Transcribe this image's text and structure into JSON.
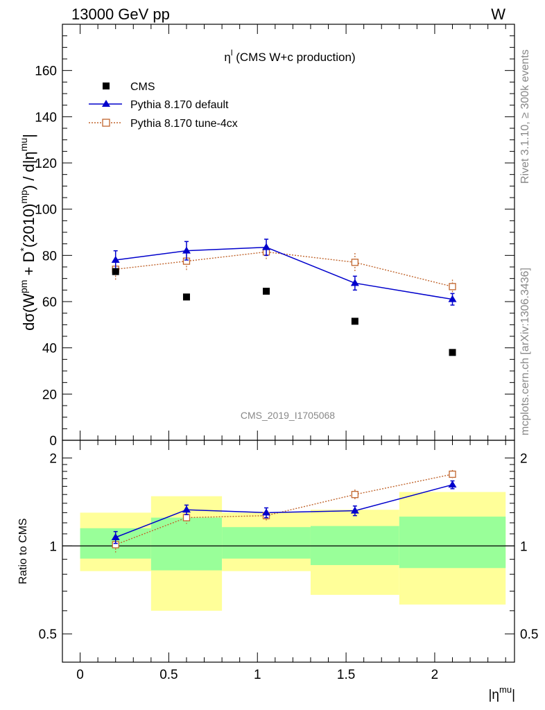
{
  "header": {
    "left": "13000 GeV pp",
    "right": "W"
  },
  "side": {
    "rivet": "Rivet 3.1.10, ≥ 300k events",
    "mcplots": "mcplots.cern.ch [arXiv:1306.3436]"
  },
  "colors": {
    "cms": "#000000",
    "default": "#0000cc",
    "tune": "#c0642c",
    "band_green": "#99ff99",
    "band_yellow": "#ffff99"
  },
  "chart_data": [
    {
      "type": "scatter",
      "title": "",
      "subtitle": {
        "main": "η",
        "sup": "l",
        "rest": " (CMS W+c production)"
      },
      "ylabel": {
        "parts": [
          "dσ(W",
          "pm",
          " + D",
          "*",
          "(2010)",
          "mp",
          ") / d|η",
          "mu",
          "|"
        ]
      },
      "xlim": [
        -0.1,
        2.45
      ],
      "ylim": [
        0,
        180
      ],
      "yticks": [
        0,
        20,
        40,
        60,
        80,
        100,
        120,
        140,
        160
      ],
      "ytick_labels": [
        "0",
        "20",
        "40",
        "60",
        "80",
        "100",
        "120",
        "140",
        "160"
      ],
      "watermark": "CMS_2019_I1705068",
      "legend_position": "top-left",
      "series": [
        {
          "name": "CMS",
          "x": [
            0.2,
            0.6,
            1.05,
            1.55,
            2.1
          ],
          "y": [
            73,
            62,
            64.5,
            51.5,
            38
          ],
          "err": [
            0,
            0,
            0,
            0,
            0
          ]
        },
        {
          "name": "Pythia 8.170 default",
          "x": [
            0.2,
            0.6,
            1.05,
            1.55,
            2.1
          ],
          "y": [
            78,
            82,
            83.5,
            68,
            61
          ],
          "err": [
            4,
            4,
            3.5,
            3,
            2.5
          ]
        },
        {
          "name": "Pythia 8.170 tune-4cx",
          "x": [
            0.2,
            0.6,
            1.05,
            1.55,
            2.1
          ],
          "y": [
            74,
            77.5,
            81.5,
            77,
            66.5
          ],
          "err": [
            4.5,
            4,
            3.5,
            4,
            3
          ]
        }
      ]
    },
    {
      "type": "scatter",
      "title": "",
      "ylabel": "Ratio to CMS",
      "xlabel": {
        "main": "|η",
        "sup": "mu",
        "end": "|"
      },
      "xlim": [
        -0.1,
        2.45
      ],
      "ylim": [
        0.4,
        2.3
      ],
      "log_y": true,
      "yticks": [
        0.5,
        1,
        2
      ],
      "ytick_labels": [
        "0.5",
        "1",
        "2"
      ],
      "xticks": [
        0,
        0.5,
        1,
        1.5,
        2
      ],
      "xtick_labels": [
        "0",
        "0.5",
        "1",
        "1.5",
        "2"
      ],
      "bands": [
        {
          "x0": 0.0,
          "x1": 0.4,
          "inner": [
            0.905,
            1.15
          ],
          "outer": [
            0.82,
            1.3
          ]
        },
        {
          "x0": 0.4,
          "x1": 0.8,
          "inner": [
            0.825,
            1.25
          ],
          "outer": [
            0.6,
            1.48
          ]
        },
        {
          "x0": 0.8,
          "x1": 1.3,
          "inner": [
            0.905,
            1.16
          ],
          "outer": [
            0.82,
            1.3
          ]
        },
        {
          "x0": 1.3,
          "x1": 1.8,
          "inner": [
            0.86,
            1.17
          ],
          "outer": [
            0.68,
            1.33
          ]
        },
        {
          "x0": 1.8,
          "x1": 2.4,
          "inner": [
            0.84,
            1.26
          ],
          "outer": [
            0.63,
            1.53
          ]
        }
      ],
      "series": [
        {
          "name": "Pythia 8.170 default",
          "x": [
            0.2,
            0.6,
            1.05,
            1.55,
            2.1
          ],
          "y": [
            1.07,
            1.33,
            1.3,
            1.32,
            1.62
          ],
          "err": [
            0.05,
            0.05,
            0.05,
            0.05,
            0.05
          ]
        },
        {
          "name": "Pythia 8.170 tune-4cx",
          "x": [
            0.2,
            0.6,
            1.05,
            1.55,
            2.1
          ],
          "y": [
            1.01,
            1.25,
            1.27,
            1.5,
            1.76
          ],
          "err": [
            0.06,
            0.06,
            0.05,
            0.06,
            0.06
          ]
        }
      ]
    }
  ]
}
